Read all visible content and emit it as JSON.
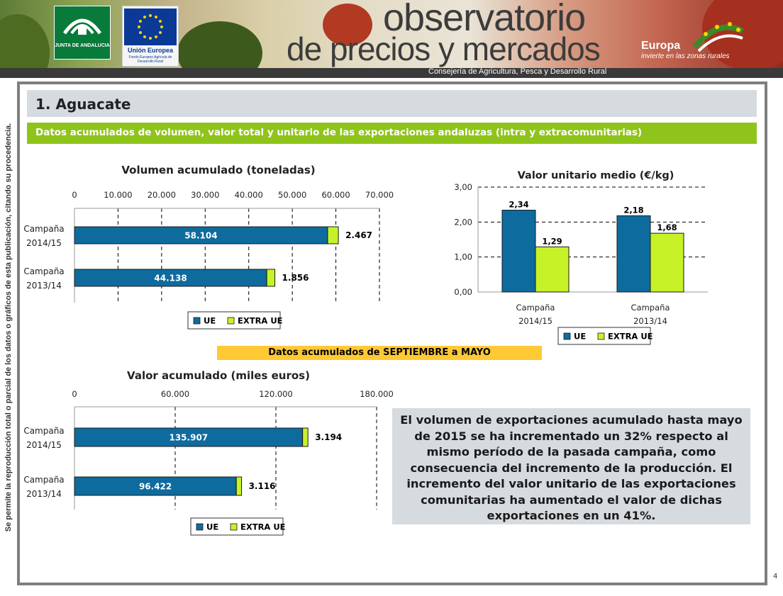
{
  "header": {
    "title_line1": "observatorio",
    "title_line2": "de precios y mercados",
    "department": "Consejería de Agricultura, Pesca y Desarrollo Rural",
    "logo_andalucia_text": "JUNTA DE ANDALUCIA",
    "logo_ue_title": "Unión Europea",
    "logo_ue_subtitle": "Fondo Europeo Agrícola de Desarrollo Rural",
    "europa_title": "Europa",
    "europa_subtitle": "invierte en las zonas rurales"
  },
  "side_note": "Se permite la reproducción total o parcial de los datos o gráficos de esta publicación, citando su procedencia.",
  "section": {
    "title": "1. Aguacate",
    "subtitle": "Datos acumulados de volumen, valor total y unitario de las exportaciones andaluzas (intra y extracomunitarias)",
    "period": "Datos acumulados de SEPTIEMBRE a MAYO"
  },
  "commentary": "El volumen de exportaciones acumulado hasta mayo de 2015 se ha incrementado un 32% respecto al mismo período de la pasada campaña, como consecuencia del incremento de la producción. El incremento del valor unitario de las exportaciones comunitarias ha aumentado el valor de dichas exportaciones en un 41%.",
  "page_number": "4",
  "colors": {
    "ue": "#0e6b9e",
    "extra_ue": "#c6f227",
    "grey_band": "#d6dbe0",
    "green_band": "#8fc41c",
    "yellow_band": "#ffc935"
  },
  "chart_data": [
    {
      "id": "volumen",
      "type": "bar",
      "orientation": "horizontal",
      "stacked": true,
      "title": "Volumen acumulado (toneladas)",
      "categories": [
        "Campaña 2014/15",
        "Campaña 2013/14"
      ],
      "xlim": [
        0,
        70000
      ],
      "ticks": [
        0,
        10000,
        20000,
        30000,
        40000,
        50000,
        60000,
        70000
      ],
      "tick_labels": [
        "0",
        "10.000",
        "20.000",
        "30.000",
        "40.000",
        "50.000",
        "60.000",
        "70.000"
      ],
      "series": [
        {
          "name": "UE",
          "values": [
            58104,
            44138
          ],
          "labels": [
            "58.104",
            "44.138"
          ]
        },
        {
          "name": "EXTRA UE",
          "values": [
            2467,
            1856
          ],
          "labels": [
            "2.467",
            "1.856"
          ]
        }
      ],
      "grid": true,
      "legend": "bottom"
    },
    {
      "id": "valor-unitario",
      "type": "bar",
      "orientation": "vertical",
      "stacked": false,
      "title": "Valor unitario medio (€/kg)",
      "categories": [
        "Campaña 2014/15",
        "Campaña 2013/14"
      ],
      "ylim": [
        0,
        3
      ],
      "ticks": [
        0,
        1,
        2,
        3
      ],
      "tick_labels": [
        "0,00",
        "1,00",
        "2,00",
        "3,00"
      ],
      "series": [
        {
          "name": "UE",
          "values": [
            2.34,
            2.18
          ],
          "labels": [
            "2,34",
            "2,18"
          ]
        },
        {
          "name": "EXTRA UE",
          "values": [
            1.29,
            1.68
          ],
          "labels": [
            "1,29",
            "1,68"
          ]
        }
      ],
      "grid": true,
      "legend": "bottom"
    },
    {
      "id": "valor",
      "type": "bar",
      "orientation": "horizontal",
      "stacked": true,
      "title": "Valor acumulado (miles euros)",
      "categories": [
        "Campaña 2014/15",
        "Campaña 2013/14"
      ],
      "xlim": [
        0,
        180000
      ],
      "ticks": [
        0,
        60000,
        120000,
        180000
      ],
      "tick_labels": [
        "0",
        "60.000",
        "120.000",
        "180.000"
      ],
      "series": [
        {
          "name": "UE",
          "values": [
            135907,
            96422
          ],
          "labels": [
            "135.907",
            "96.422"
          ]
        },
        {
          "name": "EXTRA UE",
          "values": [
            3194,
            3116
          ],
          "labels": [
            "3.194",
            "3.116"
          ]
        }
      ],
      "grid": true,
      "legend": "bottom"
    }
  ]
}
